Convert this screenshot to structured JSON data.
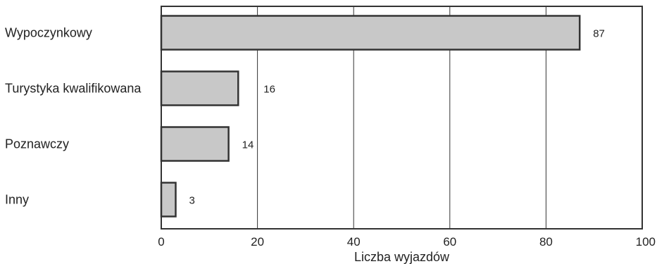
{
  "chart_data": {
    "type": "bar",
    "orientation": "horizontal",
    "categories": [
      "Wypoczynkowy",
      "Turystyka kwalifikowana",
      "Poznawczy",
      "Inny"
    ],
    "values": [
      87,
      16,
      14,
      3
    ],
    "xlabel": "Liczba wyjazdów",
    "ylabel": "",
    "xlim": [
      0,
      100
    ],
    "xticks": [
      "0",
      "20",
      "40",
      "60",
      "80",
      "100"
    ],
    "grid": "vertical",
    "legend": "none",
    "colors": {
      "bar_fill": "#c8c8c8",
      "bar_stroke": "#333333",
      "frame": "#333333",
      "grid": "#333333"
    }
  }
}
